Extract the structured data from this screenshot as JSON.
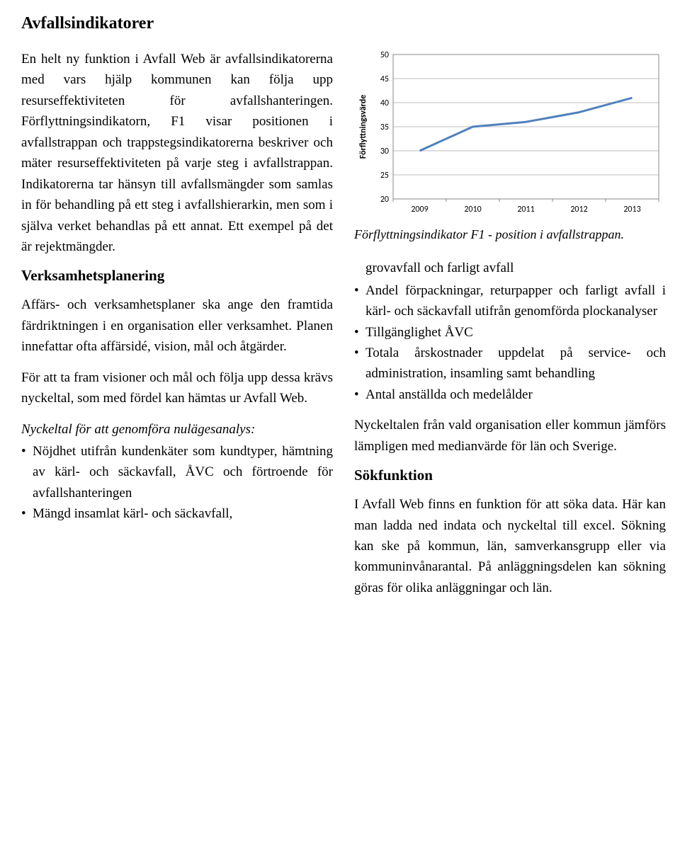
{
  "title": "Avfallsindikatorer",
  "left": {
    "p1": "En helt ny funktion i Avfall Web är avfallsindikatorerna med vars hjälp kommunen kan följa upp resurseffektiviteten för avfallshanteringen. Förflyttningsindikatorn, F1 visar positionen i avfallstrappan och trappstegsindikatorerna beskriver och mäter resurseffektiviteten på varje steg i avfallstrappan. Indikatorerna tar hänsyn till avfallsmängder som samlas in för behandling på ett steg i avfallshierarkin, men som i själva verket behandlas på ett annat. Ett exempel på det är rejektmängder.",
    "h_verksam": "Verksamhetsplanering",
    "p2": "Affärs- och verksamhetsplaner ska ange den framtida färdriktningen i en organisation eller verksamhet. Planen innefattar ofta affärsidé, vision, mål och åtgärder.",
    "p3": "För att ta fram visioner och mål och följa upp dessa krävs nyckeltal, som med fördel kan hämtas ur Avfall Web.",
    "nyckeltal_intro": "Nyckeltal för att genomföra nulägesanalys:",
    "bullets": [
      "Nöjdhet utifrån kundenkäter som kundtyper, hämtning av kärl- och säckavfall, ÅVC och förtroende för avfallshanteringen",
      "Mängd insamlat kärl- och säckavfall,"
    ]
  },
  "right": {
    "caption": "Förflyttningsindikator F1 - position i avfallstrappan.",
    "bullet_cont": "grovavfall och farligt avfall",
    "bullets2": [
      "Andel förpackningar, returpapper och farligt avfall i kärl- och säckavfall utifrån genomförda plockanalyser",
      "Tillgänglighet ÅVC",
      "Totala årskostnader uppdelat på service- och administration, insamling samt behandling",
      "Antal anställda och medelålder"
    ],
    "p4": "Nyckeltalen från vald organisation eller kommun jämförs lämpligen med medianvärde för län och Sverige.",
    "h_sok": "Sökfunktion",
    "p5": "I Avfall Web finns en funktion för att söka data. Här kan man ladda ned indata och nyckeltal till excel. Sökning kan ske på kommun, län, samverkansgrupp eller via kommuninvånarantal. På anläggningsdelen kan sökning göras för olika anläggningar och län."
  },
  "chart": {
    "type": "line",
    "ylabel": "Förflyttningsvärde",
    "categories": [
      "2009",
      "2010",
      "2011",
      "2012",
      "2013"
    ],
    "values": [
      30,
      35,
      36,
      38,
      41
    ],
    "ylim": [
      20,
      50
    ],
    "ytick_step": 5,
    "line_color": "#4f81bd",
    "line_width": 3,
    "background_color": "#ffffff",
    "grid_color": "#bfbfbf",
    "border_color": "#888888",
    "axis_fontsize": 12,
    "ylabel_fontsize": 12,
    "font_family": "Calibri, Arial, sans-serif"
  }
}
